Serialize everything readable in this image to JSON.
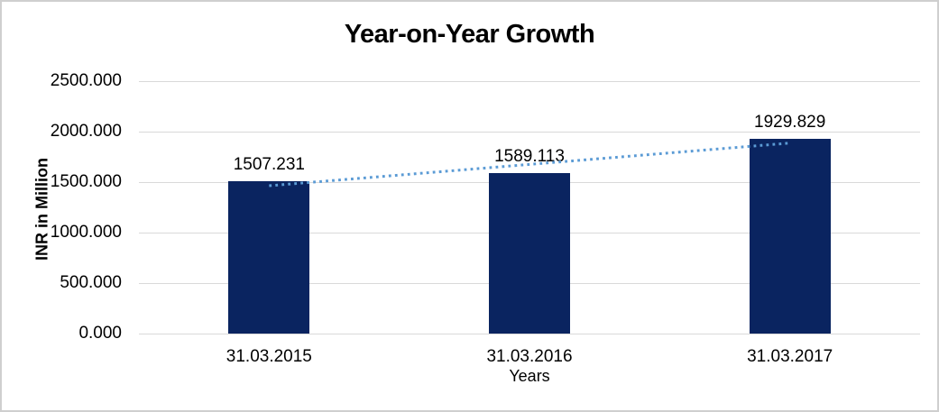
{
  "chart_data": {
    "type": "bar",
    "title": "Year-on-Year Growth",
    "xlabel": "Years",
    "ylabel": "INR in Million",
    "categories": [
      "31.03.2015",
      "31.03.2016",
      "31.03.2017"
    ],
    "values": [
      1507.231,
      1589.113,
      1929.829
    ],
    "data_labels": [
      "1507.231",
      "1589.113",
      "1929.829"
    ],
    "ylim": [
      0,
      2500
    ],
    "ytick_step": 500,
    "ytick_labels": [
      "0.000",
      "500.000",
      "1000.000",
      "1500.000",
      "2000.000",
      "2500.000"
    ],
    "grid": true,
    "legend": "none",
    "trendline": {
      "type": "linear",
      "style": "dotted"
    },
    "colors": {
      "bar": "#0a2460",
      "trendline": "#5b9bd5",
      "gridline": "#d9d9d9",
      "text": "#000000",
      "border": "#cfcfcf",
      "background": "#ffffff"
    }
  }
}
